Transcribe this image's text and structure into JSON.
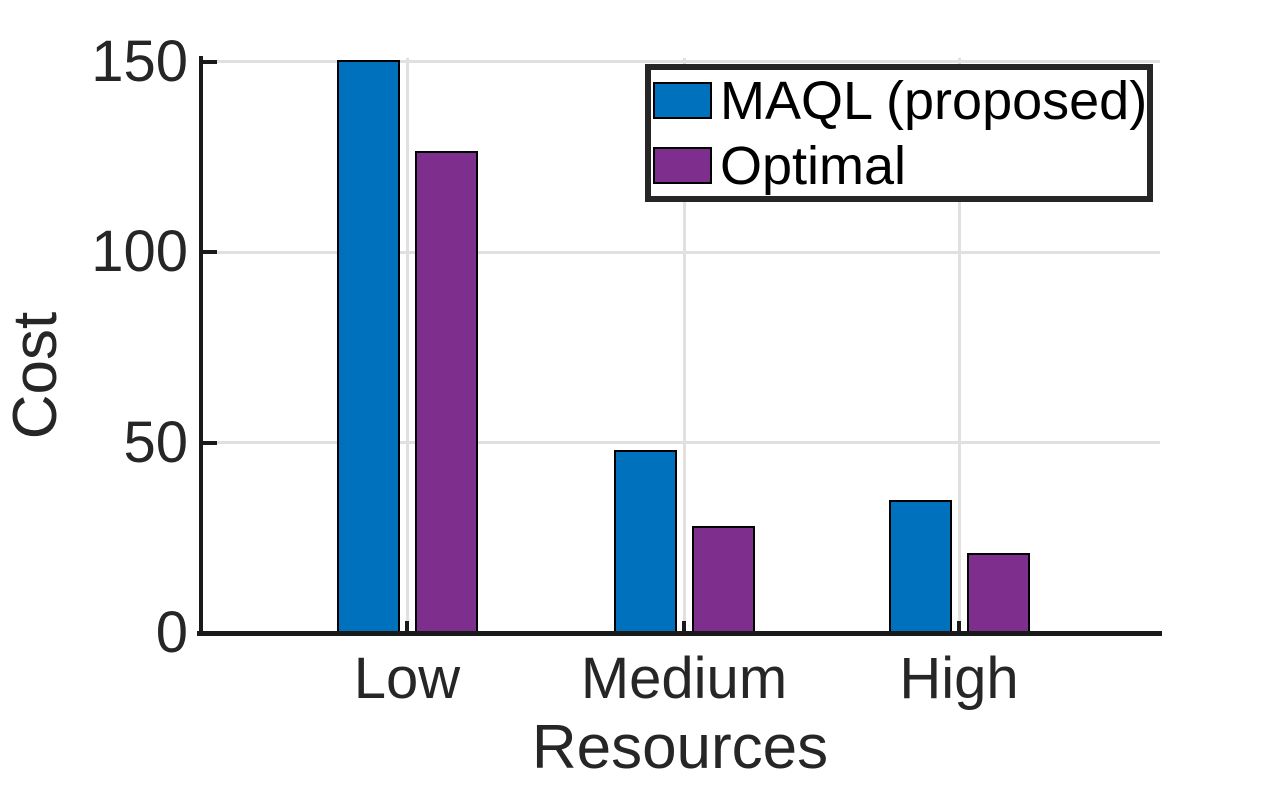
{
  "chart_data": {
    "type": "bar",
    "title": "",
    "categories": [
      "Low",
      "Medium",
      "High"
    ],
    "series": [
      {
        "name": "MAQL (proposed)",
        "color": "#0072BD",
        "values": [
          150.6,
          48,
          35
        ]
      },
      {
        "name": "Optimal",
        "color": "#7E2F8E",
        "values": [
          126.5,
          28,
          21
        ]
      }
    ],
    "xlabel": "Resources",
    "ylabel": "Cost",
    "ylim": [
      0,
      151
    ],
    "yticks": [
      0,
      50,
      100,
      150
    ],
    "grid": true,
    "legend_position": "upper right",
    "bar_edge_color": "#000000"
  },
  "figure": {
    "background": "#ffffff",
    "axis_color": "#1a1a1a",
    "grid_color": "#e0e0e0",
    "text_color": "#262626"
  }
}
